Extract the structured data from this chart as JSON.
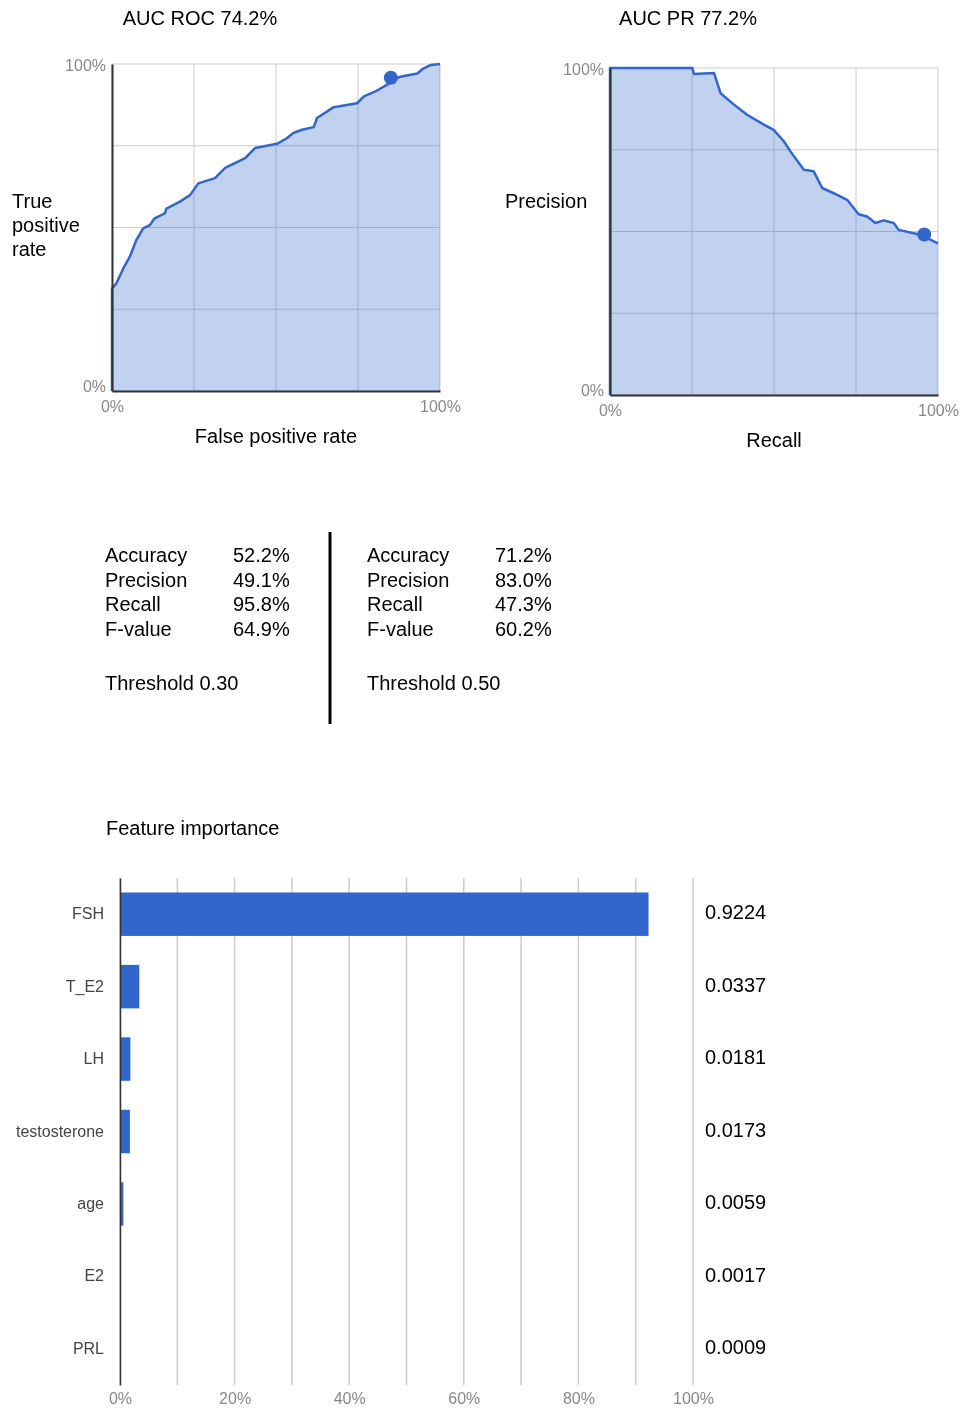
{
  "chart_data": [
    {
      "type": "area",
      "title": "AUC ROC 74.2%",
      "xlabel": "False positive rate",
      "ylabel": "True positive rate",
      "xlim": [
        0,
        100
      ],
      "ylim": [
        0,
        100
      ],
      "grid": true,
      "xticks": [
        {
          "value": 0,
          "label": "0%"
        },
        {
          "value": 25,
          "label": null
        },
        {
          "value": 50,
          "label": null
        },
        {
          "value": 75,
          "label": null
        },
        {
          "value": 100,
          "label": "100%"
        }
      ],
      "yticks": [
        {
          "value": 0,
          "label": "0%"
        },
        {
          "value": 25,
          "label": null
        },
        {
          "value": 50,
          "label": null
        },
        {
          "value": 75,
          "label": null
        },
        {
          "value": 100,
          "label": "100%"
        }
      ],
      "series": [
        {
          "type": "area",
          "color": "#3366cc",
          "x": [
            0,
            0,
            0,
            1.3,
            3.4,
            5.4,
            7.4,
            9.5,
            11.5,
            13.0,
            16.1,
            16.6,
            20.7,
            23.8,
            26.3,
            31.4,
            34.5,
            40.6,
            43.6,
            50.3,
            53.3,
            55.3,
            57.9,
            61.5,
            62.5,
            67.6,
            74.7,
            76.8,
            80.3,
            83.9,
            87.5,
            93.1,
            94.6,
            97.2,
            100
          ],
          "values": [
            0,
            25.2,
            31.3,
            32.9,
            37.4,
            41.0,
            46.1,
            49.7,
            50.7,
            52.8,
            54.3,
            55.8,
            57.9,
            59.9,
            63.5,
            65.1,
            68.2,
            71.2,
            74.3,
            75.6,
            77.3,
            78.9,
            79.9,
            80.7,
            83.5,
            86.8,
            88.0,
            90.1,
            91.6,
            93.7,
            96.0,
            97.1,
            98.4,
            99.7,
            100
          ]
        },
        {
          "type": "scatter",
          "color": "#3366cc",
          "x": [
            85
          ],
          "values": [
            95.8
          ]
        }
      ]
    },
    {
      "type": "area",
      "title": "AUC PR 77.2%",
      "xlabel": "Recall",
      "ylabel": "Precision",
      "xlim": [
        0,
        100
      ],
      "ylim": [
        0,
        100
      ],
      "grid": true,
      "xticks": [
        {
          "value": 0,
          "label": "0%"
        },
        {
          "value": 25,
          "label": null
        },
        {
          "value": 50,
          "label": null
        },
        {
          "value": 75,
          "label": null
        },
        {
          "value": 100,
          "label": "100%"
        }
      ],
      "yticks": [
        {
          "value": 0,
          "label": "0%"
        },
        {
          "value": 25,
          "label": null
        },
        {
          "value": 50,
          "label": null
        },
        {
          "value": 75,
          "label": null
        },
        {
          "value": 100,
          "label": "100%"
        }
      ],
      "series": [
        {
          "type": "area",
          "color": "#3366cc",
          "x": [
            0,
            0,
            25.1,
            25.6,
            31.7,
            33.7,
            37.8,
            41.8,
            46.9,
            49.9,
            53.0,
            55.0,
            59.1,
            62.1,
            64.7,
            68.2,
            72.3,
            75.8,
            78.4,
            80.9,
            83.4,
            86.5,
            88.0,
            94.6,
            100
          ],
          "values": [
            0,
            100,
            100,
            98.2,
            98.5,
            92.3,
            88.8,
            85.7,
            82.7,
            81.1,
            77.6,
            74.5,
            68.9,
            68.4,
            63.3,
            61.7,
            59.7,
            55.3,
            54.6,
            52.6,
            53.4,
            52.6,
            50.5,
            49.0,
            46.4
          ]
        },
        {
          "type": "scatter",
          "color": "#3366cc",
          "x": [
            95.8
          ],
          "values": [
            49.1
          ]
        }
      ]
    },
    {
      "type": "other",
      "annotations": [
        "Accuracy",
        "52.2%",
        "Precision",
        "49.1%",
        "Recall",
        "95.8%",
        "F-value",
        "64.9%",
        "Threshold 0.30",
        "Accuracy",
        "71.2%",
        "Precision",
        "83.0%",
        "Recall",
        "47.3%",
        "F-value",
        "60.2%",
        "Threshold 0.50"
      ]
    },
    {
      "type": "bar",
      "orientation": "horizontal",
      "title": "Feature importance",
      "categories": [
        "FSH",
        "T_E2",
        "LH",
        "testosterone",
        "age",
        "E2",
        "PRL"
      ],
      "values": [
        0.9224,
        0.0337,
        0.0181,
        0.0173,
        0.0059,
        0.0017,
        0.0009
      ],
      "color": "#3366cc",
      "data_labels": true,
      "grid": "x",
      "xlim": [
        0,
        1
      ],
      "xticks": [
        {
          "value": 0,
          "label": "0%"
        },
        {
          "value": 0.1,
          "label": null
        },
        {
          "value": 0.2,
          "label": "20%"
        },
        {
          "value": 0.3,
          "label": null
        },
        {
          "value": 0.4,
          "label": "40%"
        },
        {
          "value": 0.5,
          "label": null
        },
        {
          "value": 0.6,
          "label": "60%"
        },
        {
          "value": 0.7,
          "label": null
        },
        {
          "value": 0.8,
          "label": "80%"
        },
        {
          "value": 0.9,
          "label": null
        },
        {
          "value": 1,
          "label": "100%"
        }
      ]
    }
  ]
}
